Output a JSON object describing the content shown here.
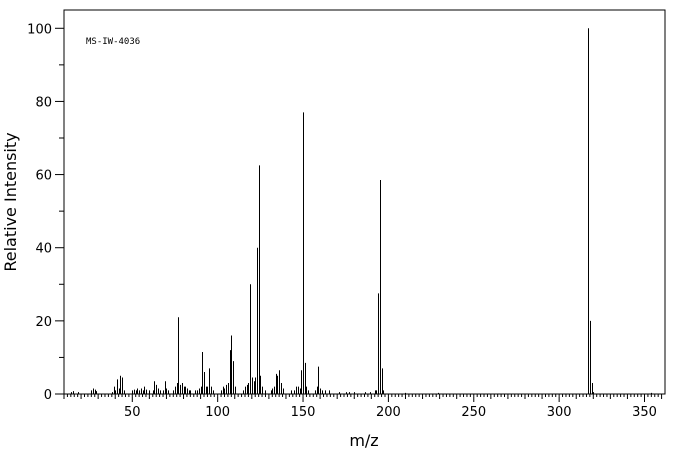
{
  "chart_data": {
    "type": "bar",
    "title": "",
    "annotation": "MS-IW-4036",
    "xlabel": "m/z",
    "ylabel": "Relative Intensity",
    "xlim": [
      10,
      362
    ],
    "ylim": [
      0,
      105
    ],
    "x_ticks": [
      50,
      100,
      150,
      200,
      250,
      300,
      350
    ],
    "y_ticks": [
      0,
      20,
      40,
      60,
      80,
      100
    ],
    "grid": false,
    "legend": "none",
    "series": [
      {
        "x": [
          14,
          15,
          18,
          26,
          27,
          28,
          29,
          38,
          39,
          40,
          41,
          42,
          43,
          44,
          45,
          50,
          51,
          52,
          53,
          54,
          55,
          56,
          57,
          58,
          60,
          62,
          63,
          64,
          65,
          66,
          68,
          69,
          70,
          71,
          74,
          75,
          76,
          77,
          78,
          79,
          80,
          81,
          82,
          83,
          84,
          87,
          88,
          89,
          90,
          91,
          92,
          93,
          94,
          95,
          96,
          97,
          102,
          103,
          104,
          105,
          106,
          107,
          108,
          109,
          110,
          115,
          116,
          117,
          118,
          119,
          120,
          121,
          122,
          123,
          124,
          125,
          126,
          128,
          131,
          132,
          133,
          134,
          135,
          136,
          137,
          138,
          143,
          145,
          146,
          147,
          148,
          149,
          150,
          151,
          152,
          153,
          157,
          158,
          159,
          160,
          161,
          163,
          165,
          171,
          175,
          177,
          180,
          186,
          189,
          192,
          193,
          194,
          195,
          196,
          197,
          210,
          229,
          317,
          318,
          319,
          320,
          354
        ],
        "y": [
          0.5,
          0.8,
          0.5,
          1.0,
          1.5,
          1.2,
          0.8,
          0.5,
          2.0,
          1.0,
          4.0,
          1.5,
          5.0,
          4.5,
          1.0,
          1.0,
          1.2,
          1.0,
          1.5,
          1.0,
          1.5,
          1.0,
          2.0,
          1.2,
          1.0,
          1.0,
          3.5,
          2.5,
          1.5,
          1.0,
          1.0,
          3.5,
          1.5,
          1.0,
          1.0,
          2.0,
          3.0,
          21.0,
          2.5,
          3.0,
          2.0,
          2.0,
          1.5,
          1.0,
          1.0,
          1.0,
          1.0,
          1.5,
          2.0,
          11.5,
          6.0,
          2.0,
          2.0,
          7.0,
          2.0,
          1.0,
          1.0,
          2.0,
          1.5,
          2.5,
          3.0,
          12.0,
          16.0,
          9.0,
          2.0,
          1.0,
          2.0,
          2.5,
          3.0,
          30.0,
          4.5,
          3.5,
          4.5,
          40.0,
          62.5,
          5.0,
          2.0,
          1.0,
          1.0,
          1.5,
          2.0,
          5.5,
          5.0,
          6.5,
          3.0,
          1.5,
          1.0,
          1.0,
          2.0,
          2.0,
          1.5,
          6.5,
          77.0,
          8.5,
          2.0,
          1.0,
          1.0,
          2.0,
          7.5,
          1.5,
          1.0,
          1.0,
          1.0,
          0.5,
          0.5,
          0.5,
          0.5,
          0.5,
          0.5,
          1.0,
          1.0,
          27.5,
          58.5,
          7.0,
          1.0,
          0.3,
          0.3,
          100.0,
          20.0,
          3.0,
          0.5,
          0.3
        ]
      }
    ]
  }
}
